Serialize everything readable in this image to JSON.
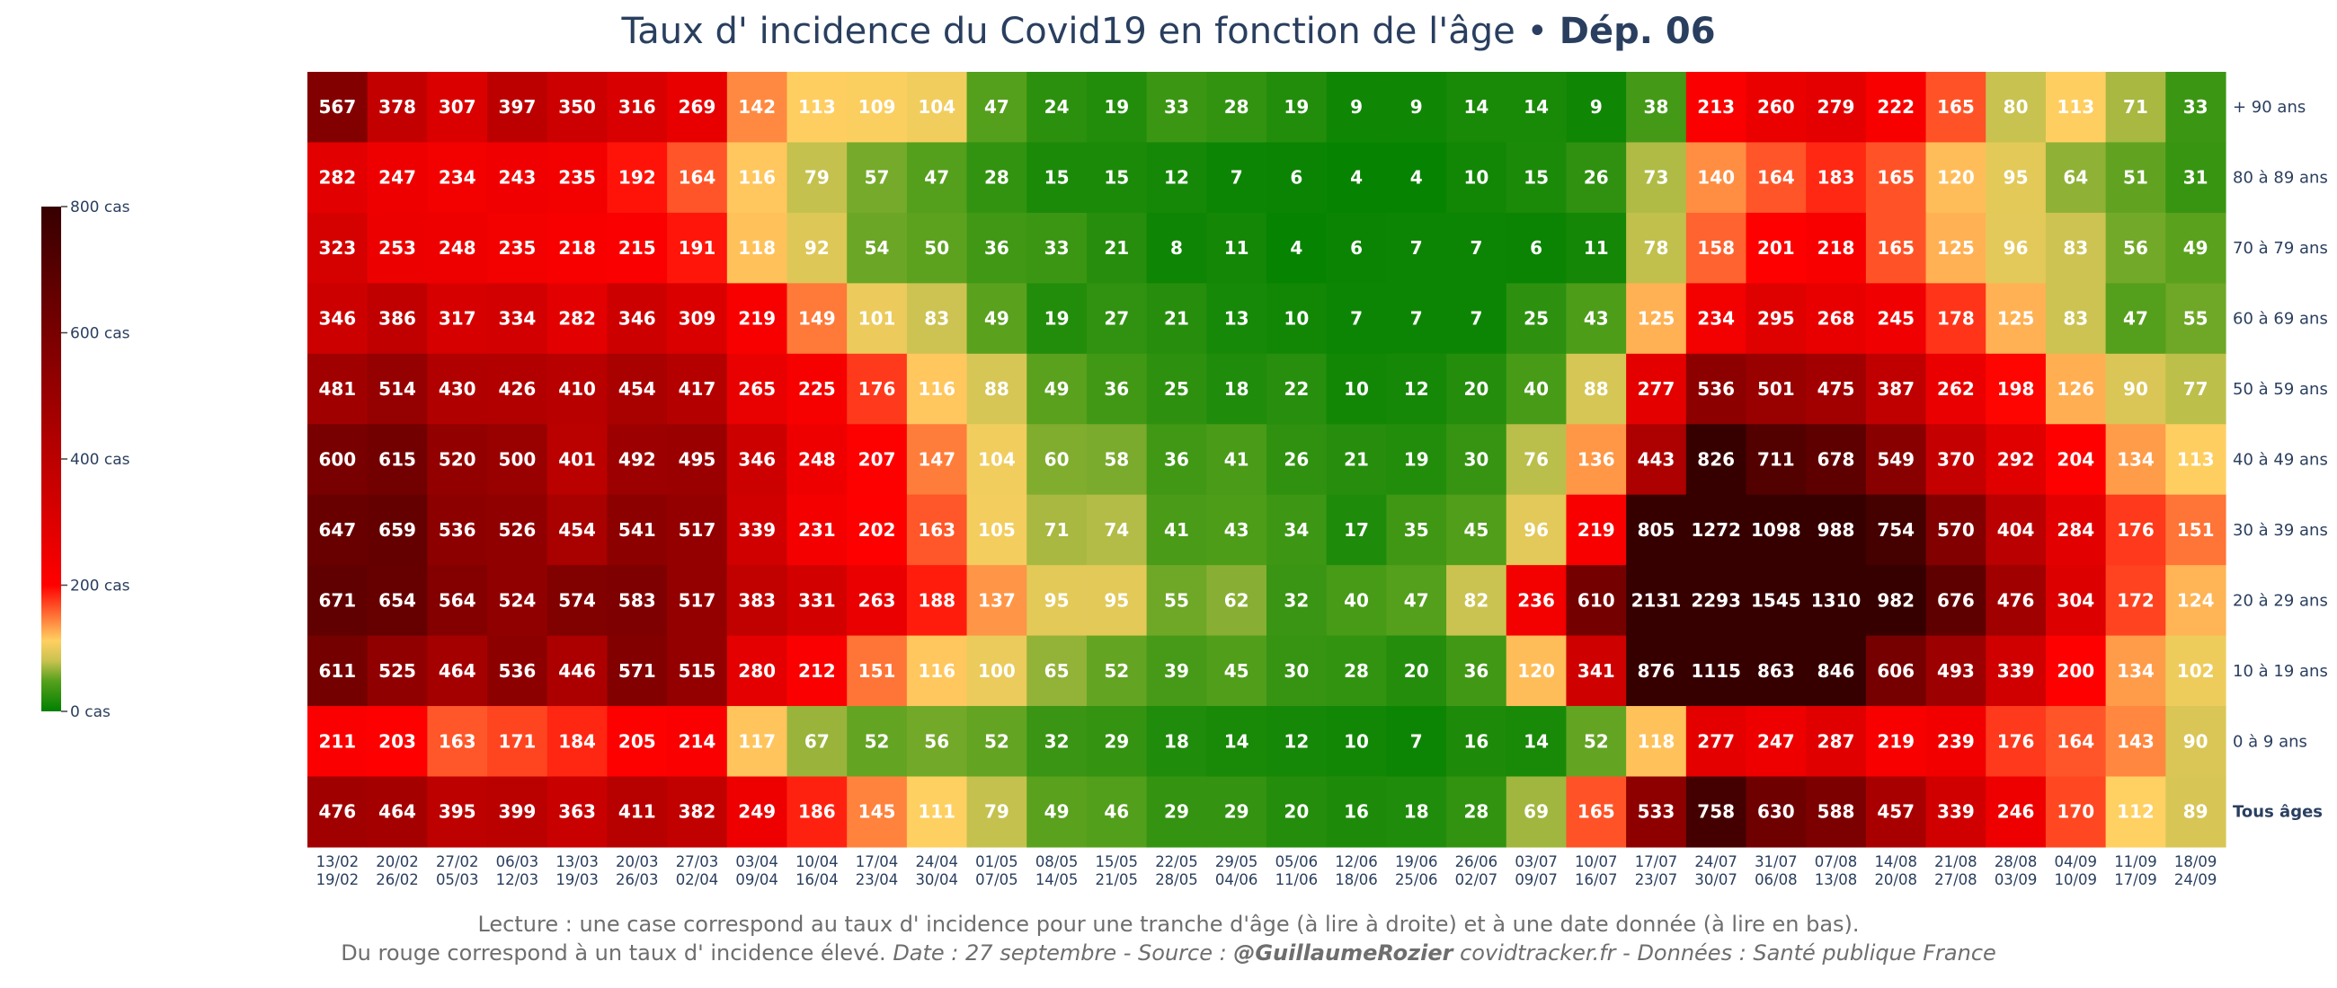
{
  "chart_data": {
    "type": "heatmap",
    "title": "Taux d' incidence du Covid19 en fonction de l'âge",
    "title_separator": " • ",
    "title_bold": "Dép. 06",
    "rows": [
      "+ 90 ans",
      "80 à 89 ans",
      "70 à 79 ans",
      "60 à 69 ans",
      "50 à 59 ans",
      "40 à 49 ans",
      "30 à 39 ans",
      "20 à 29 ans",
      "10 à 19 ans",
      "0 à 9 ans",
      "Tous âges"
    ],
    "columns": [
      [
        "13/02",
        "19/02"
      ],
      [
        "20/02",
        "26/02"
      ],
      [
        "27/02",
        "05/03"
      ],
      [
        "06/03",
        "12/03"
      ],
      [
        "13/03",
        "19/03"
      ],
      [
        "20/03",
        "26/03"
      ],
      [
        "27/03",
        "02/04"
      ],
      [
        "03/04",
        "09/04"
      ],
      [
        "10/04",
        "16/04"
      ],
      [
        "17/04",
        "23/04"
      ],
      [
        "24/04",
        "30/04"
      ],
      [
        "01/05",
        "07/05"
      ],
      [
        "08/05",
        "14/05"
      ],
      [
        "15/05",
        "21/05"
      ],
      [
        "22/05",
        "28/05"
      ],
      [
        "29/05",
        "04/06"
      ],
      [
        "05/06",
        "11/06"
      ],
      [
        "12/06",
        "18/06"
      ],
      [
        "19/06",
        "25/06"
      ],
      [
        "26/06",
        "02/07"
      ],
      [
        "03/07",
        "09/07"
      ],
      [
        "10/07",
        "16/07"
      ],
      [
        "17/07",
        "23/07"
      ],
      [
        "24/07",
        "30/07"
      ],
      [
        "31/07",
        "06/08"
      ],
      [
        "07/08",
        "13/08"
      ],
      [
        "14/08",
        "20/08"
      ],
      [
        "21/08",
        "27/08"
      ],
      [
        "28/08",
        "03/09"
      ],
      [
        "04/09",
        "10/09"
      ],
      [
        "11/09",
        "17/09"
      ],
      [
        "18/09",
        "24/09"
      ]
    ],
    "values": [
      [
        567,
        378,
        307,
        397,
        350,
        316,
        269,
        142,
        113,
        109,
        104,
        47,
        24,
        19,
        33,
        28,
        19,
        9,
        9,
        14,
        14,
        9,
        38,
        213,
        260,
        279,
        222,
        165,
        80,
        113,
        71,
        33
      ],
      [
        282,
        247,
        234,
        243,
        235,
        192,
        164,
        116,
        79,
        57,
        47,
        28,
        15,
        15,
        12,
        7,
        6,
        4,
        4,
        10,
        15,
        26,
        73,
        140,
        164,
        183,
        165,
        120,
        95,
        64,
        51,
        31
      ],
      [
        323,
        253,
        248,
        235,
        218,
        215,
        191,
        118,
        92,
        54,
        50,
        36,
        33,
        21,
        8,
        11,
        4,
        6,
        7,
        7,
        6,
        11,
        78,
        158,
        201,
        218,
        165,
        125,
        96,
        83,
        56,
        49
      ],
      [
        346,
        386,
        317,
        334,
        282,
        346,
        309,
        219,
        149,
        101,
        83,
        49,
        19,
        27,
        21,
        13,
        10,
        7,
        7,
        7,
        25,
        43,
        125,
        234,
        295,
        268,
        245,
        178,
        125,
        83,
        47,
        55
      ],
      [
        481,
        514,
        430,
        426,
        410,
        454,
        417,
        265,
        225,
        176,
        116,
        88,
        49,
        36,
        25,
        18,
        22,
        10,
        12,
        20,
        40,
        88,
        277,
        536,
        501,
        475,
        387,
        262,
        198,
        126,
        90,
        77
      ],
      [
        600,
        615,
        520,
        500,
        401,
        492,
        495,
        346,
        248,
        207,
        147,
        104,
        60,
        58,
        36,
        41,
        26,
        21,
        19,
        30,
        76,
        136,
        443,
        826,
        711,
        678,
        549,
        370,
        292,
        204,
        134,
        113
      ],
      [
        647,
        659,
        536,
        526,
        454,
        541,
        517,
        339,
        231,
        202,
        163,
        105,
        71,
        74,
        41,
        43,
        34,
        17,
        35,
        45,
        96,
        219,
        805,
        1272,
        1098,
        988,
        754,
        570,
        404,
        284,
        176,
        151
      ],
      [
        671,
        654,
        564,
        524,
        574,
        583,
        517,
        383,
        331,
        263,
        188,
        137,
        95,
        95,
        55,
        62,
        32,
        40,
        47,
        82,
        236,
        610,
        2131,
        2293,
        1545,
        1310,
        982,
        676,
        476,
        304,
        172,
        124
      ],
      [
        611,
        525,
        464,
        536,
        446,
        571,
        515,
        280,
        212,
        151,
        116,
        100,
        65,
        52,
        39,
        45,
        30,
        28,
        20,
        36,
        120,
        341,
        876,
        1115,
        863,
        846,
        606,
        493,
        339,
        200,
        134,
        102
      ],
      [
        211,
        203,
        163,
        171,
        184,
        205,
        214,
        117,
        67,
        52,
        56,
        52,
        32,
        29,
        18,
        14,
        12,
        10,
        7,
        16,
        14,
        52,
        118,
        277,
        247,
        287,
        219,
        239,
        176,
        164,
        143,
        90
      ],
      [
        476,
        464,
        395,
        399,
        363,
        411,
        382,
        249,
        186,
        145,
        111,
        79,
        49,
        46,
        29,
        29,
        20,
        16,
        18,
        28,
        69,
        165,
        533,
        758,
        630,
        588,
        457,
        339,
        246,
        170,
        112,
        89
      ]
    ],
    "colorscale": {
      "zmin": 0,
      "zmax": 800,
      "stops": [
        [
          0,
          "#008000"
        ],
        [
          0.06,
          "#56a01c"
        ],
        [
          0.1,
          "#c8c250"
        ],
        [
          0.14,
          "#ffd062"
        ],
        [
          0.25,
          "#ff0000"
        ],
        [
          0.6,
          "#a00000"
        ],
        [
          1.0,
          "#360000"
        ]
      ],
      "tick_values": [
        0,
        200,
        400,
        600,
        800
      ],
      "tick_labels": [
        "0 cas",
        "200 cas",
        "400 cas",
        "600 cas",
        "800 cas"
      ]
    },
    "caption_line1": "Lecture : une case correspond au taux d' incidence pour une tranche d'âge (à lire à droite) et à une date donnée (à lire en bas).",
    "caption_line2_plain": "Du rouge correspond à un taux d' incidence élevé.",
    "caption_line2_italic": "Date : 27 septembre - Source : ",
    "caption_line2_bold": "@GuillaumeRozier",
    "caption_line2_tail": " covidtracker.fr - Données : Santé publique France"
  }
}
